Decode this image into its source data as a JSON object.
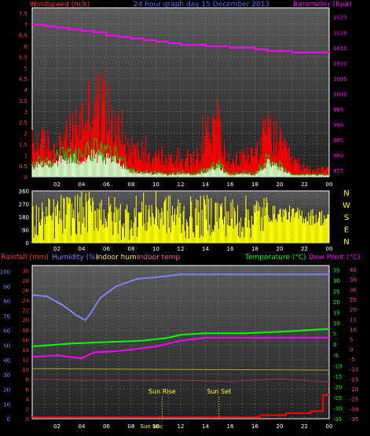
{
  "chart_data": [
    {
      "type": "bar",
      "title": "24 hour graph day  15 December 2013",
      "left_axis_title": "Windspeed (m/s)",
      "right_axis_title": "Barometer (hpa)",
      "colors": {
        "gust": "#ff0000",
        "average": "#c8ffc8",
        "trend": "#00cc00",
        "barometer": "#ff00ff"
      },
      "left_ticks": [
        "0",
        "0.5",
        "1",
        "1.5",
        "2",
        "2.5",
        "3",
        "3.5",
        "4",
        "4.5",
        "5",
        "5.5",
        "6",
        "6.5",
        "7",
        "7.5"
      ],
      "right_ticks": [
        "975",
        "980",
        "985",
        "990",
        "995",
        "1000",
        "1005",
        "1010",
        "1015",
        "1020",
        "1025"
      ],
      "x_ticks": [
        "02",
        "04",
        "06",
        "08",
        "10",
        "12",
        "14",
        "16",
        "18",
        "20",
        "22",
        "00"
      ],
      "ylim": [
        0,
        7.75
      ],
      "barometer_ylim": [
        973,
        1028
      ],
      "wind_gust_hourly": [
        1.8,
        1.9,
        1.6,
        2.3,
        3.2,
        4.2,
        3.6,
        2.6,
        1.5,
        1.4,
        1.2,
        0.9,
        1.0,
        0.9,
        2.4,
        2.7,
        0.6,
        1.2,
        1.3,
        2.6,
        1.9,
        0.9,
        0.5,
        0.4,
        0.4
      ],
      "wind_average_hourly": [
        0.6,
        0.7,
        0.9,
        1.0,
        1.0,
        1.2,
        1.0,
        0.9,
        0.3,
        0.2,
        0.2,
        0.1,
        0.2,
        0.1,
        0.3,
        0.6,
        0.1,
        0.2,
        0.1,
        0.8,
        0.5,
        0.1,
        0.1,
        0.1,
        0.1
      ],
      "barometer_hourly": [
        1022.5,
        1022,
        1021.5,
        1021,
        1020.5,
        1020,
        1019,
        1018.5,
        1018,
        1017.5,
        1017,
        1016.5,
        1016,
        1016,
        1015.5,
        1015.5,
        1015,
        1015,
        1014.5,
        1014,
        1014,
        1013.5,
        1013.5,
        1013.5,
        1014
      ]
    },
    {
      "type": "bar",
      "left_ticks": [
        "0",
        "90",
        "180",
        "270",
        "360"
      ],
      "right_labels": [
        "N",
        "W",
        "S",
        "E",
        "N"
      ],
      "x_ticks": [
        "02",
        "04",
        "06",
        "08",
        "10",
        "12",
        "14",
        "16",
        "18",
        "20",
        "22",
        "00"
      ],
      "ylim": [
        0,
        360
      ],
      "color": "#ffff00",
      "direction_hourly": [
        150,
        170,
        190,
        200,
        210,
        220,
        180,
        160,
        190,
        200,
        210,
        190,
        170,
        180,
        200,
        190,
        170,
        180,
        190,
        200,
        200,
        190,
        180,
        175,
        170
      ]
    },
    {
      "type": "line",
      "legend": [
        "Rainfall (mm)",
        "Humidity (%)",
        "Indoor hum",
        "Indoor temp",
        "Temperature (°C)",
        "Dew Point (°C)"
      ],
      "legend_colors": [
        "#ff3333",
        "#8080ff",
        "#ffe060",
        "#ff60a0",
        "#00ff00",
        "#ff00ff"
      ],
      "humidity_ticks": [
        "0",
        "10",
        "20",
        "30",
        "40",
        "50",
        "60",
        "70",
        "80",
        "90",
        "100"
      ],
      "rain_ticks": [
        "0",
        "2",
        "4",
        "6",
        "8",
        "10",
        "12",
        "14",
        "16",
        "18",
        "20",
        "22",
        "24",
        "26",
        "28",
        "30"
      ],
      "temp_ticks": [
        "-35",
        "-30",
        "-25",
        "-20",
        "-15",
        "-10",
        "-5",
        "0",
        "5",
        "10",
        "15",
        "20",
        "25",
        "30",
        "35"
      ],
      "dew_ticks": [
        "-35",
        "-30",
        "-25",
        "-20",
        "-15",
        "-10",
        "-5",
        "0",
        "5",
        "10",
        "15",
        "20",
        "25",
        "30",
        "35",
        "40"
      ],
      "x_ticks": [
        "02",
        "04",
        "06",
        "08",
        "10",
        "12",
        "14",
        "16",
        "18",
        "20",
        "22",
        "00"
      ],
      "x_range_hours": [
        0,
        24
      ],
      "humidity_ylim": [
        0,
        104
      ],
      "temp_ylim": [
        -35,
        37
      ],
      "rain_ylim": [
        0,
        31
      ],
      "sunrise": {
        "label": "Sun Rise",
        "hour": 10.5
      },
      "sunset": {
        "label": "Sun Set",
        "hour": 15.1
      },
      "extra_tick": "Sun Noc",
      "humidity": [
        [
          0,
          84
        ],
        [
          1.2,
          83
        ],
        [
          2.5,
          77
        ],
        [
          3.6,
          70
        ],
        [
          4.3,
          67
        ],
        [
          4.6,
          70
        ],
        [
          5.5,
          82
        ],
        [
          6.8,
          90
        ],
        [
          8.5,
          95
        ],
        [
          10,
          96
        ],
        [
          11,
          97
        ],
        [
          12,
          98
        ],
        [
          24,
          98
        ]
      ],
      "indoor_humidity": [
        [
          0,
          34
        ],
        [
          24,
          33
        ]
      ],
      "indoor_temp": [
        [
          0,
          27
        ],
        [
          4,
          26
        ],
        [
          8,
          26
        ],
        [
          12,
          26
        ],
        [
          16,
          25.5
        ],
        [
          20,
          27
        ],
        [
          24,
          25
        ]
      ],
      "temperature": [
        [
          0,
          49
        ],
        [
          3,
          51
        ],
        [
          6,
          52
        ],
        [
          9,
          53
        ],
        [
          11,
          55
        ],
        [
          12,
          57
        ],
        [
          14,
          58
        ],
        [
          17,
          58
        ],
        [
          20,
          59
        ],
        [
          24,
          61
        ]
      ],
      "dew_point": [
        [
          0,
          42
        ],
        [
          2,
          43
        ],
        [
          4,
          41
        ],
        [
          5,
          45
        ],
        [
          7,
          46
        ],
        [
          10,
          49
        ],
        [
          12,
          53
        ],
        [
          14,
          55
        ],
        [
          24,
          55
        ]
      ],
      "rainfall": [
        [
          0,
          0
        ],
        [
          18.4,
          0
        ],
        [
          18.4,
          0.4
        ],
        [
          20.5,
          0.4
        ],
        [
          20.5,
          0.8
        ],
        [
          22.5,
          0.8
        ],
        [
          22.5,
          1.2
        ],
        [
          23.5,
          1.2
        ],
        [
          23.5,
          4.5
        ],
        [
          24,
          4.5
        ]
      ]
    }
  ]
}
